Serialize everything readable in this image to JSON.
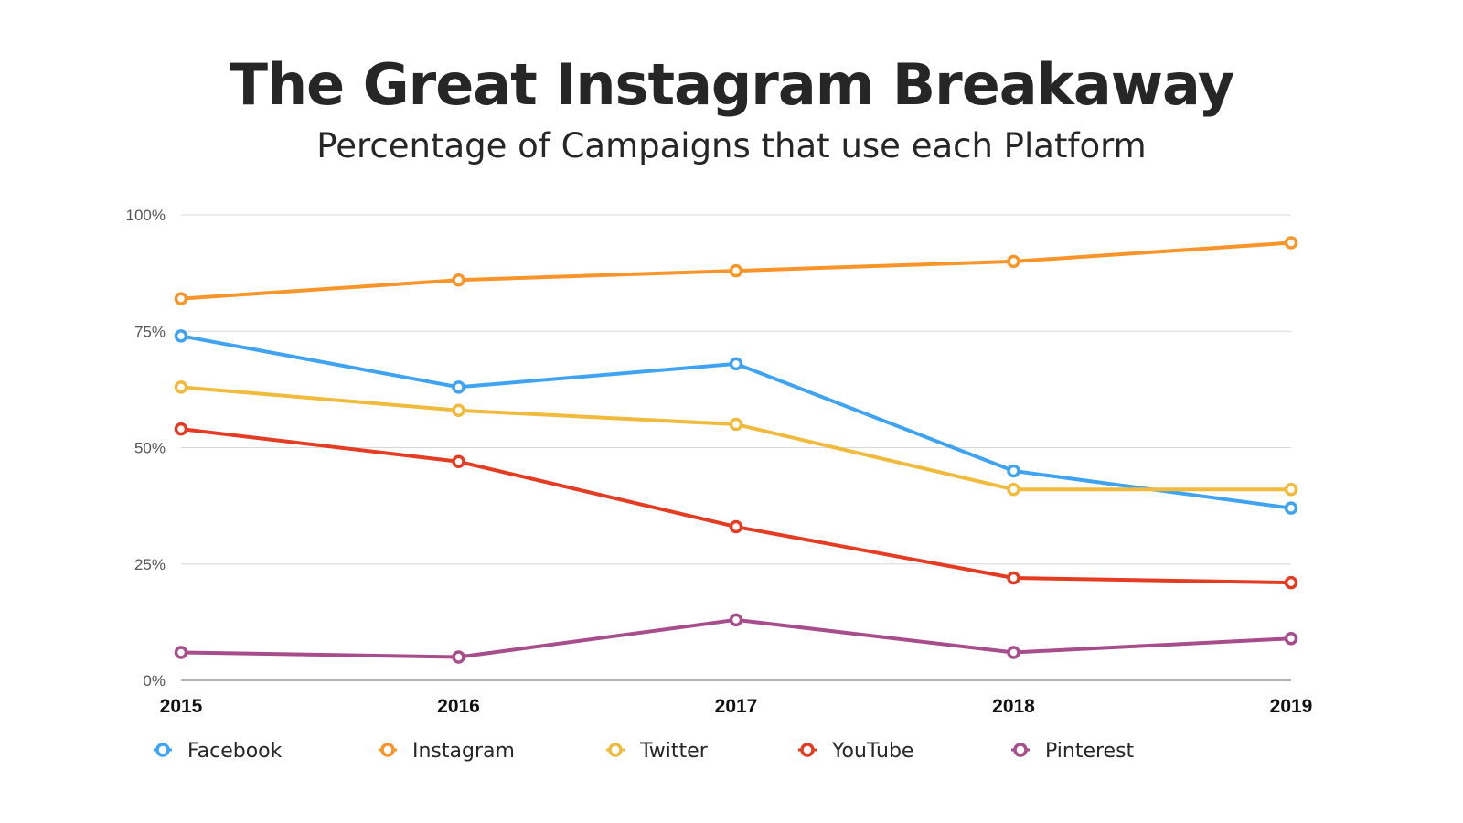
{
  "title": "The Great Instagram Breakaway",
  "subtitle": "Percentage of Campaigns that use each Platform",
  "chart_data": {
    "type": "line",
    "title": "The Great Instagram Breakaway",
    "subtitle": "Percentage of Campaigns that use each Platform",
    "xlabel": "",
    "ylabel": "",
    "categories": [
      "2015",
      "2016",
      "2017",
      "2018",
      "2019"
    ],
    "ylim": [
      0,
      100
    ],
    "yticks": [
      0,
      25,
      50,
      75,
      100
    ],
    "ytick_labels": [
      "0%",
      "25%",
      "50%",
      "75%",
      "100%"
    ],
    "grid": true,
    "legend_position": "bottom",
    "series": [
      {
        "name": "Facebook",
        "color": "#3fa3f1",
        "values": [
          74,
          63,
          68,
          45,
          37
        ]
      },
      {
        "name": "Instagram",
        "color": "#f7952b",
        "values": [
          82,
          86,
          88,
          90,
          94
        ]
      },
      {
        "name": "Twitter",
        "color": "#f0bb3d",
        "values": [
          63,
          58,
          55,
          41,
          41
        ]
      },
      {
        "name": "YouTube",
        "color": "#e43b23",
        "values": [
          54,
          47,
          33,
          22,
          21
        ]
      },
      {
        "name": "Pinterest",
        "color": "#a74d8c",
        "values": [
          6,
          5,
          13,
          6,
          9
        ]
      }
    ]
  }
}
